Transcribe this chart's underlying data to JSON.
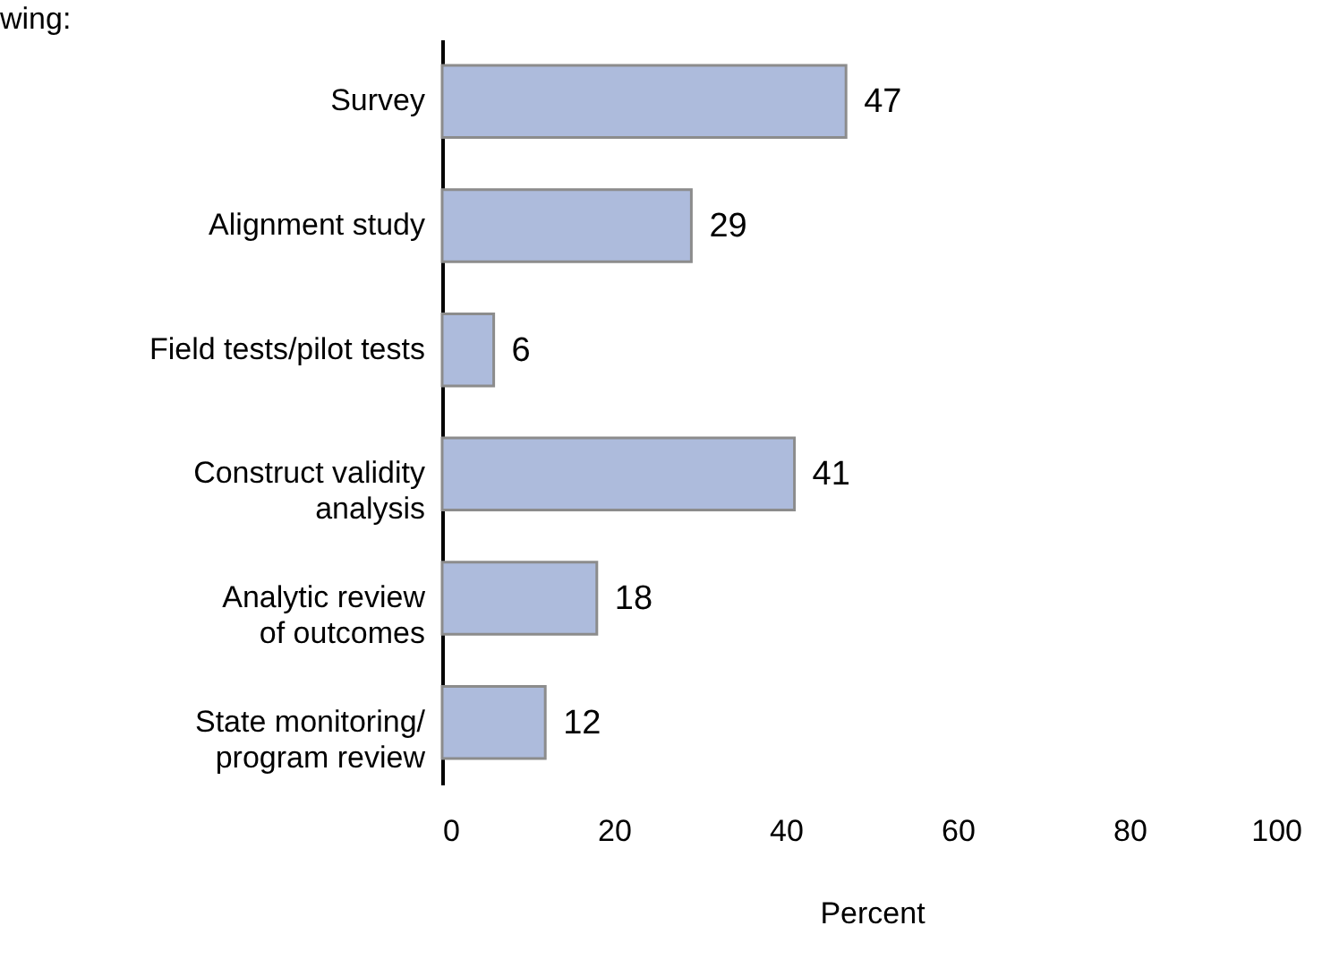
{
  "chart_data": {
    "type": "bar",
    "orientation": "horizontal",
    "title": "wing:",
    "xlabel": "Percent",
    "categories": [
      "Survey",
      "Alignment study",
      "Field tests/pilot tests",
      "Construct validity\nanalysis",
      "Analytic review\nof outcomes",
      "State monitoring/\nprogram review"
    ],
    "values": [
      47,
      29,
      6,
      41,
      18,
      12
    ],
    "color": "#adbbdc",
    "data_labels": true,
    "xlim": [
      0,
      100
    ],
    "xticks": [
      0,
      20,
      40,
      60,
      80,
      100
    ],
    "grid": false
  }
}
